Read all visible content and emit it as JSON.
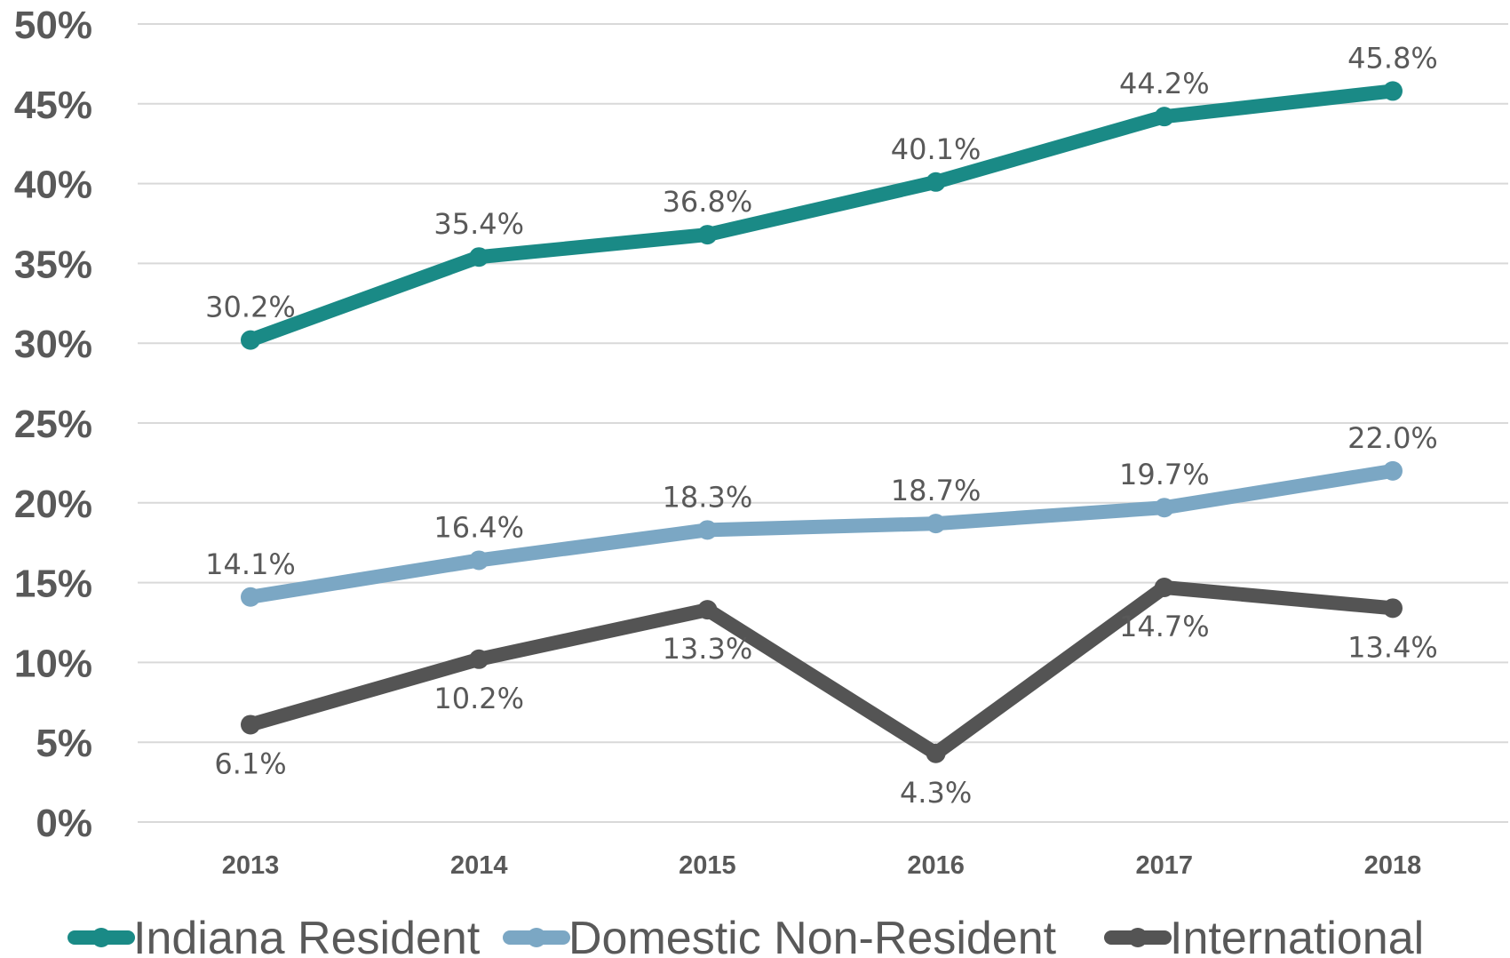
{
  "chart_data": {
    "type": "line",
    "categories": [
      "2013",
      "2014",
      "2015",
      "2016",
      "2017",
      "2018"
    ],
    "y_ticks": [
      "0%",
      "5%",
      "10%",
      "15%",
      "20%",
      "25%",
      "30%",
      "35%",
      "40%",
      "45%",
      "50%"
    ],
    "ylim": [
      0,
      50
    ],
    "grid": true,
    "legend_position": "bottom",
    "series": [
      {
        "name": "Indiana Resident",
        "color": "#1a8a86",
        "values": [
          30.2,
          35.4,
          36.8,
          40.1,
          44.2,
          45.8
        ],
        "labels": [
          "30.2%",
          "35.4%",
          "36.8%",
          "40.1%",
          "44.2%",
          "45.8%"
        ],
        "label_position": "above"
      },
      {
        "name": "Domestic Non-Resident",
        "color": "#7ba7c4",
        "values": [
          14.1,
          16.4,
          18.3,
          18.7,
          19.7,
          22.0
        ],
        "labels": [
          "14.1%",
          "16.4%",
          "18.3%",
          "18.7%",
          "19.7%",
          "22.0%"
        ],
        "label_position": "above"
      },
      {
        "name": "International",
        "color": "#545454",
        "values": [
          6.1,
          10.2,
          13.3,
          4.3,
          14.7,
          13.4
        ],
        "labels": [
          "6.1%",
          "10.2%",
          "13.3%",
          "4.3%",
          "14.7%",
          "13.4%"
        ],
        "label_position": "below"
      }
    ]
  }
}
